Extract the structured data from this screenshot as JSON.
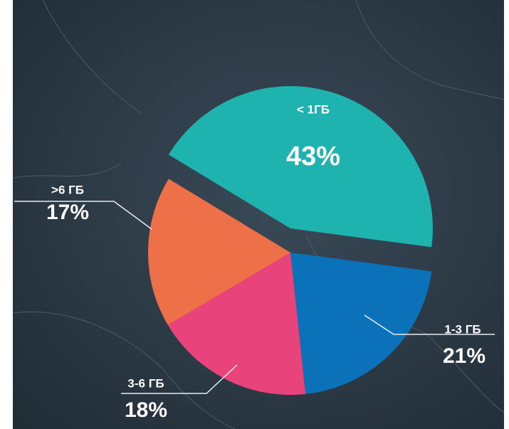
{
  "chart_data": {
    "type": "pie",
    "categories": [
      "< 1ГБ",
      "1-3 ГБ",
      "3-6 ГБ",
      ">6 ГБ"
    ],
    "values": [
      43,
      21,
      18,
      17
    ],
    "value_labels": [
      "43%",
      "21%",
      "18%",
      "17%"
    ],
    "colors": [
      "#1fb3b0",
      "#0b71b8",
      "#e8447b",
      "#ee7049"
    ],
    "explode": [
      true,
      false,
      false,
      false
    ]
  }
}
